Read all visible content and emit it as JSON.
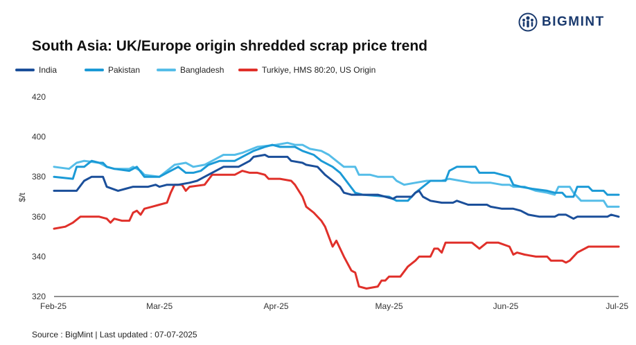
{
  "brand": {
    "name": "BIGMINT",
    "icon": "bigmint-logo-icon"
  },
  "source": "Source : BigMint | Last updated : 07-07-2025",
  "chart_data": {
    "type": "line",
    "title": "South Asia: UK/Europe origin shredded scrap price trend",
    "xlabel": "",
    "ylabel": "$/t",
    "ylim": [
      320,
      420
    ],
    "yticks": [
      320,
      340,
      360,
      380,
      400,
      420
    ],
    "xlim": [
      0,
      150
    ],
    "xticks": [
      {
        "label": "Feb-25",
        "x": 0
      },
      {
        "label": "Mar-25",
        "x": 28
      },
      {
        "label": "Apr-25",
        "x": 59
      },
      {
        "label": "May-25",
        "x": 89
      },
      {
        "label": "Jun-25",
        "x": 120
      },
      {
        "label": "Jul-25",
        "x": 150
      }
    ],
    "grid": false,
    "legend": "top-left",
    "series": [
      {
        "name": "India",
        "color": "#1b4f9a",
        "points": [
          [
            0,
            373
          ],
          [
            6,
            373
          ],
          [
            8,
            378
          ],
          [
            10,
            380
          ],
          [
            13,
            380
          ],
          [
            14,
            375
          ],
          [
            17,
            373
          ],
          [
            19,
            374
          ],
          [
            21,
            375
          ],
          [
            25,
            375
          ],
          [
            27,
            376
          ],
          [
            28,
            375
          ],
          [
            30,
            376
          ],
          [
            33,
            376
          ],
          [
            36,
            377
          ],
          [
            38,
            378
          ],
          [
            40,
            380
          ],
          [
            43,
            383
          ],
          [
            45,
            385
          ],
          [
            49,
            385
          ],
          [
            50,
            386
          ],
          [
            52,
            388
          ],
          [
            53,
            390
          ],
          [
            56,
            391
          ],
          [
            57,
            390
          ],
          [
            62,
            390
          ],
          [
            63,
            388
          ],
          [
            66,
            387
          ],
          [
            67,
            386
          ],
          [
            70,
            385
          ],
          [
            72,
            381
          ],
          [
            74,
            378
          ],
          [
            76,
            375
          ],
          [
            77,
            372
          ],
          [
            79,
            371
          ],
          [
            86,
            371
          ],
          [
            88,
            370
          ],
          [
            90,
            369
          ],
          [
            91,
            370
          ],
          [
            95,
            370
          ],
          [
            96,
            372
          ],
          [
            97,
            373
          ],
          [
            98,
            370
          ],
          [
            100,
            368
          ],
          [
            103,
            367
          ],
          [
            106,
            367
          ],
          [
            107,
            368
          ],
          [
            110,
            366
          ],
          [
            115,
            366
          ],
          [
            116,
            365
          ],
          [
            119,
            364
          ],
          [
            122,
            364
          ],
          [
            124,
            363
          ],
          [
            126,
            361
          ],
          [
            129,
            360
          ],
          [
            133,
            360
          ],
          [
            134,
            361
          ],
          [
            136,
            361
          ],
          [
            138,
            359
          ],
          [
            139,
            360
          ],
          [
            147,
            360
          ],
          [
            148,
            361
          ],
          [
            150,
            360
          ]
        ]
      },
      {
        "name": "Pakistan",
        "color": "#1b9ad6",
        "points": [
          [
            0,
            380
          ],
          [
            5,
            379
          ],
          [
            6,
            385
          ],
          [
            8,
            385
          ],
          [
            10,
            388
          ],
          [
            12,
            387
          ],
          [
            13,
            387
          ],
          [
            14,
            385
          ],
          [
            16,
            384
          ],
          [
            20,
            383
          ],
          [
            22,
            385
          ],
          [
            24,
            380
          ],
          [
            28,
            380
          ],
          [
            30,
            382
          ],
          [
            33,
            385
          ],
          [
            35,
            382
          ],
          [
            37,
            382
          ],
          [
            39,
            383
          ],
          [
            41,
            386
          ],
          [
            44,
            388
          ],
          [
            48,
            388
          ],
          [
            50,
            390
          ],
          [
            53,
            393
          ],
          [
            56,
            395
          ],
          [
            58,
            396
          ],
          [
            60,
            395
          ],
          [
            64,
            395
          ],
          [
            66,
            393
          ],
          [
            69,
            391
          ],
          [
            71,
            388
          ],
          [
            74,
            385
          ],
          [
            76,
            382
          ],
          [
            78,
            377
          ],
          [
            80,
            372
          ],
          [
            82,
            371
          ],
          [
            89,
            370
          ],
          [
            91,
            368
          ],
          [
            94,
            368
          ],
          [
            96,
            372
          ],
          [
            98,
            375
          ],
          [
            100,
            378
          ],
          [
            104,
            378
          ],
          [
            105,
            383
          ],
          [
            107,
            385
          ],
          [
            112,
            385
          ],
          [
            113,
            382
          ],
          [
            117,
            382
          ],
          [
            121,
            380
          ],
          [
            122,
            376
          ],
          [
            124,
            375
          ],
          [
            127,
            374
          ],
          [
            131,
            373
          ],
          [
            133,
            372
          ],
          [
            135,
            372
          ],
          [
            136,
            370
          ],
          [
            138,
            370
          ],
          [
            139,
            375
          ],
          [
            142,
            375
          ],
          [
            143,
            373
          ],
          [
            146,
            373
          ],
          [
            147,
            371
          ],
          [
            150,
            371
          ]
        ]
      },
      {
        "name": "Bangladesh",
        "color": "#55bde8",
        "points": [
          [
            0,
            385
          ],
          [
            4,
            384
          ],
          [
            6,
            387
          ],
          [
            8,
            388
          ],
          [
            12,
            387
          ],
          [
            14,
            385
          ],
          [
            16,
            384
          ],
          [
            20,
            384
          ],
          [
            21,
            385
          ],
          [
            23,
            383
          ],
          [
            24,
            381
          ],
          [
            28,
            380
          ],
          [
            30,
            383
          ],
          [
            32,
            386
          ],
          [
            35,
            387
          ],
          [
            37,
            385
          ],
          [
            40,
            386
          ],
          [
            43,
            389
          ],
          [
            45,
            391
          ],
          [
            48,
            391
          ],
          [
            50,
            392
          ],
          [
            54,
            395
          ],
          [
            59,
            396
          ],
          [
            62,
            397
          ],
          [
            64,
            396
          ],
          [
            66,
            396
          ],
          [
            68,
            394
          ],
          [
            71,
            393
          ],
          [
            73,
            391
          ],
          [
            75,
            388
          ],
          [
            77,
            385
          ],
          [
            80,
            385
          ],
          [
            81,
            381
          ],
          [
            84,
            381
          ],
          [
            86,
            380
          ],
          [
            90,
            380
          ],
          [
            91,
            378
          ],
          [
            93,
            376
          ],
          [
            96,
            377
          ],
          [
            99,
            378
          ],
          [
            103,
            378
          ],
          [
            105,
            379
          ],
          [
            108,
            378
          ],
          [
            111,
            377
          ],
          [
            116,
            377
          ],
          [
            119,
            376
          ],
          [
            121,
            376
          ],
          [
            122,
            375
          ],
          [
            125,
            375
          ],
          [
            128,
            373
          ],
          [
            131,
            372
          ],
          [
            133,
            371
          ],
          [
            134,
            375
          ],
          [
            137,
            375
          ],
          [
            138,
            372
          ],
          [
            140,
            368
          ],
          [
            142,
            368
          ],
          [
            146,
            368
          ],
          [
            147,
            365
          ],
          [
            150,
            365
          ]
        ]
      },
      {
        "name": "Turkiye, HMS 80:20, US Origin",
        "color": "#e0302a",
        "points": [
          [
            0,
            354
          ],
          [
            3,
            355
          ],
          [
            5,
            357
          ],
          [
            7,
            360
          ],
          [
            12,
            360
          ],
          [
            14,
            359
          ],
          [
            15,
            357
          ],
          [
            16,
            359
          ],
          [
            18,
            358
          ],
          [
            20,
            358
          ],
          [
            21,
            362
          ],
          [
            22,
            363
          ],
          [
            23,
            361
          ],
          [
            24,
            364
          ],
          [
            26,
            365
          ],
          [
            28,
            366
          ],
          [
            30,
            367
          ],
          [
            31,
            372
          ],
          [
            32,
            376
          ],
          [
            34,
            376
          ],
          [
            35,
            373
          ],
          [
            36,
            375
          ],
          [
            40,
            376
          ],
          [
            42,
            381
          ],
          [
            48,
            381
          ],
          [
            50,
            383
          ],
          [
            52,
            382
          ],
          [
            54,
            382
          ],
          [
            56,
            381
          ],
          [
            57,
            379
          ],
          [
            60,
            379
          ],
          [
            63,
            378
          ],
          [
            64,
            376
          ],
          [
            66,
            370
          ],
          [
            67,
            365
          ],
          [
            69,
            362
          ],
          [
            71,
            358
          ],
          [
            72,
            355
          ],
          [
            74,
            345
          ],
          [
            75,
            348
          ],
          [
            77,
            340
          ],
          [
            79,
            333
          ],
          [
            80,
            332
          ],
          [
            81,
            325
          ],
          [
            83,
            324
          ],
          [
            86,
            325
          ],
          [
            87,
            328
          ],
          [
            88,
            328
          ],
          [
            89,
            330
          ],
          [
            92,
            330
          ],
          [
            94,
            335
          ],
          [
            96,
            338
          ],
          [
            97,
            340
          ],
          [
            100,
            340
          ],
          [
            101,
            344
          ],
          [
            102,
            344
          ],
          [
            103,
            342
          ],
          [
            104,
            347
          ],
          [
            111,
            347
          ],
          [
            113,
            344
          ],
          [
            115,
            347
          ],
          [
            118,
            347
          ],
          [
            121,
            345
          ],
          [
            122,
            341
          ],
          [
            123,
            342
          ],
          [
            125,
            341
          ],
          [
            128,
            340
          ],
          [
            131,
            340
          ],
          [
            132,
            338
          ],
          [
            135,
            338
          ],
          [
            136,
            337
          ],
          [
            137,
            338
          ],
          [
            139,
            342
          ],
          [
            142,
            345
          ],
          [
            150,
            345
          ]
        ]
      }
    ]
  }
}
